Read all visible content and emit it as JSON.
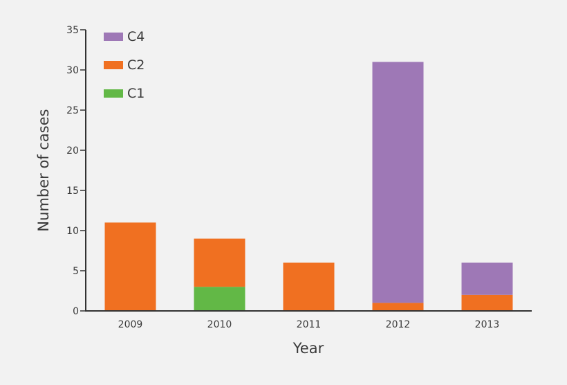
{
  "chart_data": {
    "type": "bar",
    "stacked": true,
    "categories": [
      "2009",
      "2010",
      "2011",
      "2012",
      "2013"
    ],
    "series": [
      {
        "name": "C1",
        "color": "#62b846",
        "values": [
          0,
          3,
          0,
          0,
          0
        ]
      },
      {
        "name": "C2",
        "color": "#f07021",
        "values": [
          11,
          6,
          6,
          1,
          2
        ]
      },
      {
        "name": "C4",
        "color": "#9e78b6",
        "values": [
          0,
          0,
          0,
          30,
          4
        ]
      }
    ],
    "legend_order": [
      "C4",
      "C2",
      "C1"
    ],
    "legend_position": "top-left",
    "title": "",
    "xlabel": "Year",
    "ylabel": "Number of cases",
    "ylim": [
      0,
      35
    ],
    "yticks": [
      0,
      5,
      10,
      15,
      20,
      25,
      30,
      35
    ],
    "grid": false
  }
}
